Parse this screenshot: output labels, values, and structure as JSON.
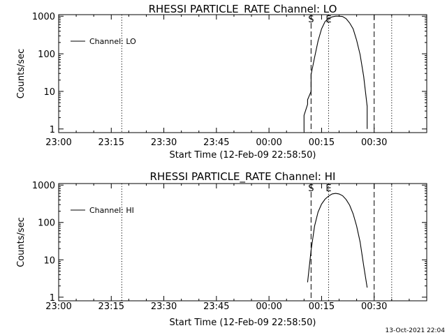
{
  "footer_date": "13-Oct-2021 22:04",
  "chart_data": [
    {
      "type": "line",
      "title": "RHESSI PARTICLE_RATE Channel: LO",
      "xlabel": "Start Time (12-Feb-09 22:58:50)",
      "ylabel": "Counts/sec",
      "y_scale": "log",
      "ylim": [
        0.8,
        1100
      ],
      "xlim": [
        "23:00",
        "00:45"
      ],
      "x_ticks": [
        "23:00",
        "23:15",
        "23:30",
        "23:45",
        "00:00",
        "00:15",
        "00:30"
      ],
      "y_ticks": [
        "1",
        "10",
        "100",
        "1000"
      ],
      "legend": {
        "label": "Channel: LO",
        "placement": "top-left"
      },
      "markers": [
        {
          "label": "S",
          "time": "00:12",
          "style": "dashed"
        },
        {
          "label": "E",
          "time": "00:17",
          "style": "dotted"
        }
      ],
      "vlines": [
        {
          "time": "23:18",
          "style": "dotted"
        },
        {
          "time": "00:30",
          "style": "dashed"
        },
        {
          "time": "00:35",
          "style": "dotted"
        }
      ],
      "series": [
        {
          "name": "Channel: LO",
          "x": [
            "00:10",
            "00:10",
            "00:11",
            "00:11",
            "00:12",
            "00:12",
            "00:13",
            "00:14",
            "00:15",
            "00:16",
            "00:17",
            "00:18",
            "00:19",
            "00:20",
            "00:21",
            "00:22",
            "00:23",
            "00:24",
            "00:25",
            "00:26",
            "00:27",
            "00:28",
            "00:28"
          ],
          "y": [
            0.9,
            2.3,
            4.5,
            6,
            10,
            28,
            80,
            220,
            460,
            720,
            880,
            960,
            1000,
            1000,
            980,
            860,
            660,
            460,
            230,
            95,
            25,
            4,
            1
          ]
        }
      ]
    },
    {
      "type": "line",
      "title": "RHESSI PARTICLE_RATE Channel: HI",
      "xlabel": "Start Time (12-Feb-09 22:58:50)",
      "ylabel": "Counts/sec",
      "y_scale": "log",
      "ylim": [
        0.8,
        1100
      ],
      "xlim": [
        "23:00",
        "00:45"
      ],
      "x_ticks": [
        "23:00",
        "23:15",
        "23:30",
        "23:45",
        "00:00",
        "00:15",
        "00:30"
      ],
      "y_ticks": [
        "1",
        "10",
        "100",
        "1000"
      ],
      "legend": {
        "label": "Channel: HI",
        "placement": "top-left"
      },
      "markers": [
        {
          "label": "S",
          "time": "00:12",
          "style": "dashed"
        },
        {
          "label": "E",
          "time": "00:17",
          "style": "dotted"
        }
      ],
      "vlines": [
        {
          "time": "23:18",
          "style": "dotted"
        },
        {
          "time": "00:30",
          "style": "dashed"
        },
        {
          "time": "00:35",
          "style": "dotted"
        }
      ],
      "series": [
        {
          "name": "Channel: HI",
          "x": [
            "00:11",
            "00:12",
            "00:13",
            "00:14",
            "00:15",
            "00:16",
            "00:17",
            "00:18",
            "00:19",
            "00:20",
            "00:21",
            "00:22",
            "00:23",
            "00:24",
            "00:25",
            "00:26",
            "00:27",
            "00:28"
          ],
          "y": [
            2.5,
            18,
            80,
            190,
            310,
            420,
            510,
            580,
            600,
            580,
            520,
            410,
            290,
            170,
            80,
            30,
            7,
            1.8
          ]
        }
      ]
    }
  ]
}
